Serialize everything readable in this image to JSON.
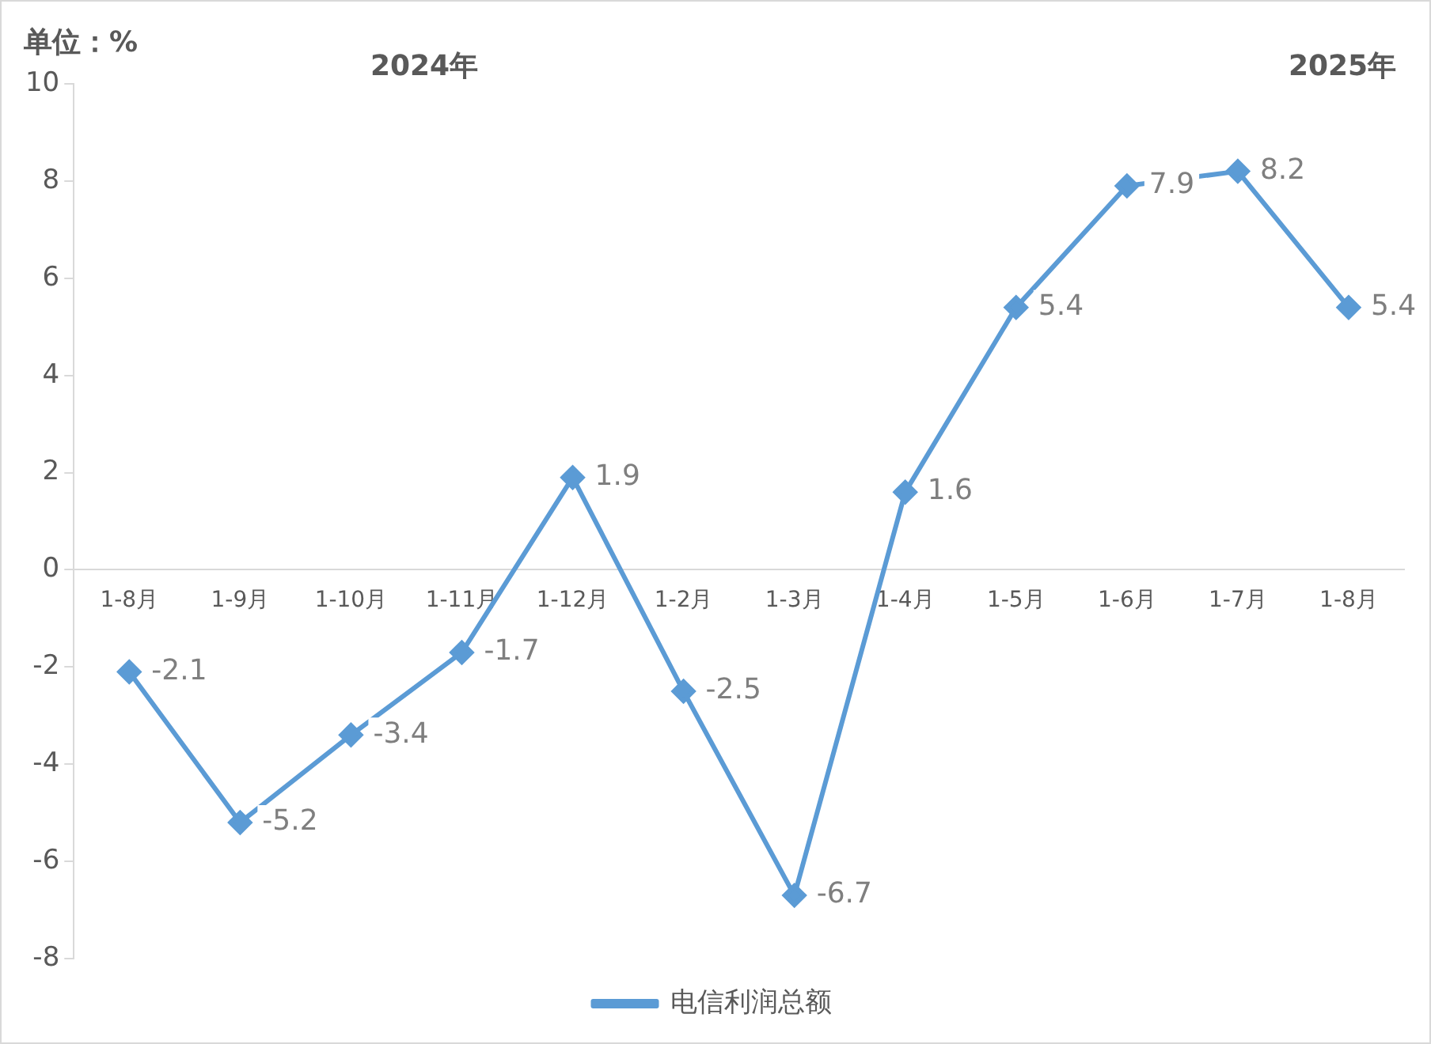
{
  "chart_data": {
    "type": "line",
    "annotations": [
      "单位：%",
      "2024年",
      "2025年"
    ],
    "categories": [
      "1-8月",
      "1-9月",
      "1-10月",
      "1-11月",
      "1-12月",
      "1-2月",
      "1-3月",
      "1-4月",
      "1-5月",
      "1-6月",
      "1-7月",
      "1-8月"
    ],
    "series": [
      {
        "name": "电信利润总额",
        "color": "#5b9bd5",
        "values": [
          -2.1,
          -5.2,
          -3.4,
          -1.7,
          1.9,
          -2.5,
          -6.7,
          1.6,
          5.4,
          7.9,
          8.2,
          5.4
        ]
      }
    ],
    "ylim": [
      -8,
      10
    ],
    "yticks": [
      -8,
      -6,
      -4,
      -2,
      0,
      2,
      4,
      6,
      8,
      10
    ],
    "grid": false,
    "legend": "bottom",
    "marker": "diamond",
    "line_style": "solid",
    "data_labels": true
  }
}
